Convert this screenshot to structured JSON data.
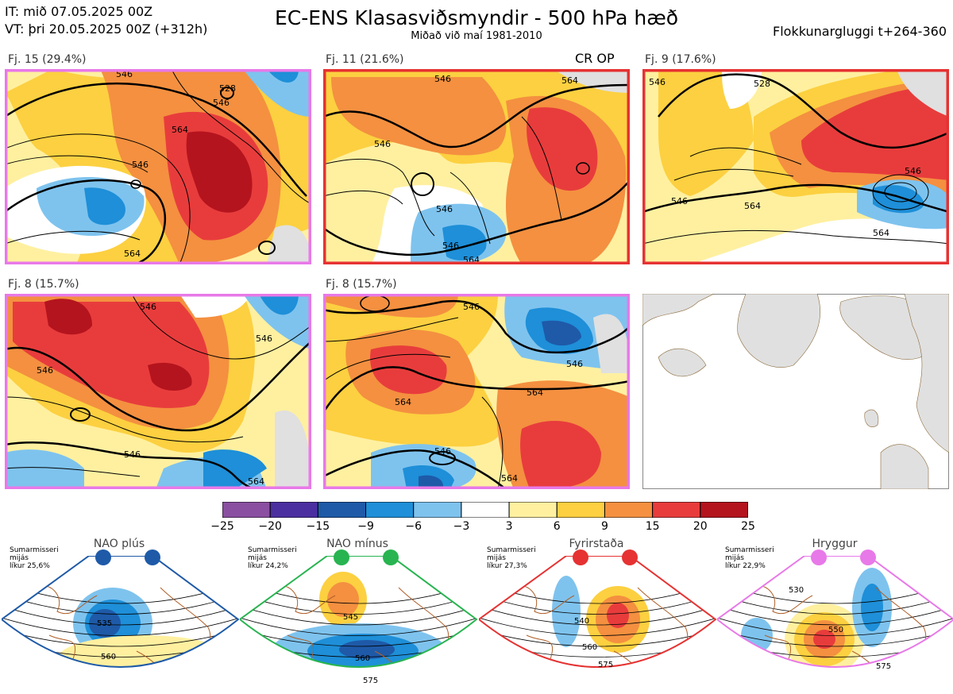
{
  "header": {
    "it": "IT: mið 07.05.2025 00Z",
    "vt": "VT: þri 20.05.2025 00Z  (+312h)",
    "title": "EC-ENS Klasasviðsmyndir - 500 hPa hæð",
    "subtitle": "Miðað við maí 1981-2010",
    "window": "Flokkunargluggi t+264-360"
  },
  "panels": [
    {
      "label": "Fj. 15 (29.4%)",
      "border": "#e879e8",
      "contours": [
        "546",
        "564",
        "546",
        "528",
        "546",
        "564"
      ]
    },
    {
      "label": "Fj. 11 (21.6%)",
      "border": "#e63232",
      "contours": [
        "546",
        "546",
        "564",
        "546",
        "546",
        "564"
      ],
      "extra": "CR OP"
    },
    {
      "label": "Fj. 9 (17.6%)",
      "border": "#e63232",
      "contours": [
        "528",
        "546",
        "546",
        "546",
        "564",
        "564"
      ]
    },
    {
      "label": "Fj. 8 (15.7%)",
      "border": "#e879e8",
      "contours": [
        "546",
        "546",
        "546",
        "546",
        "564"
      ]
    },
    {
      "label": "Fj. 8 (15.7%)",
      "border": "#e879e8",
      "contours": [
        "546",
        "546",
        "564",
        "564",
        "546",
        "564"
      ]
    }
  ],
  "colorbar": {
    "ticks": [
      "−25",
      "−20",
      "−15",
      "−9",
      "−6",
      "−3",
      "3",
      "6",
      "9",
      "15",
      "20",
      "25"
    ],
    "colors": [
      "#8a4fa0",
      "#4b2fa0",
      "#1e5aa8",
      "#1e8fd8",
      "#7ec3ee",
      "#ffffff",
      "#fff0a0",
      "#fcd040",
      "#f49040",
      "#e83c3c",
      "#b4141e"
    ]
  },
  "regimes": [
    {
      "title": "NAO plús",
      "season": "Sumarmisseri",
      "freq": "mijás",
      "prob": "líkur 25,6%",
      "color": "#1e5aa8",
      "contours": [
        "535",
        "560"
      ]
    },
    {
      "title": "NAO mínus",
      "season": "Sumarmisseri",
      "freq": "mijás",
      "prob": "líkur 24,2%",
      "color": "#28b450",
      "contours": [
        "545",
        "560",
        "575"
      ]
    },
    {
      "title": "Fyrirstaða",
      "season": "Sumarmisseri",
      "freq": "mijás",
      "prob": "líkur 27,3%",
      "color": "#e63232",
      "contours": [
        "540",
        "560",
        "575"
      ]
    },
    {
      "title": "Hryggur",
      "season": "Sumarmisseri",
      "freq": "mijás",
      "prob": "líkur 22,9%",
      "color": "#e879e8",
      "contours": [
        "530",
        "550",
        "575"
      ]
    }
  ]
}
